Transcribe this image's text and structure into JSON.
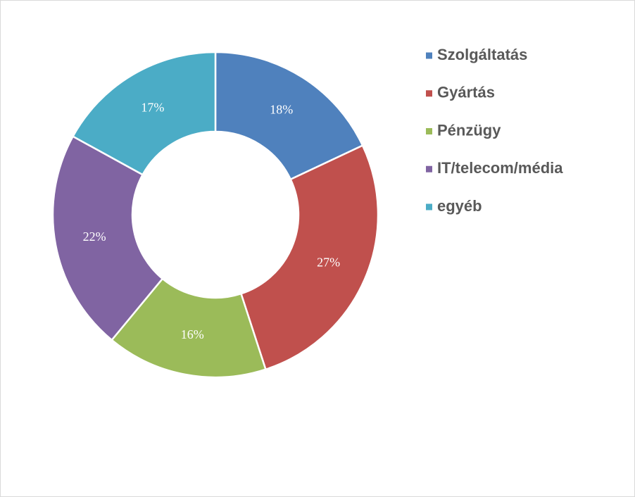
{
  "chart_data": {
    "type": "pie",
    "categories": [
      "Szolgáltatás",
      "Gyártás",
      "Pénzügy",
      "IT/telecom/média",
      "egyéb"
    ],
    "values": [
      18,
      27,
      16,
      22,
      17
    ],
    "value_labels": [
      "18%",
      "27%",
      "16%",
      "22%",
      "17%"
    ],
    "colors": [
      "#4f81bd",
      "#c0504d",
      "#9bbb59",
      "#8064a2",
      "#4bacc6"
    ],
    "legend": "right"
  }
}
